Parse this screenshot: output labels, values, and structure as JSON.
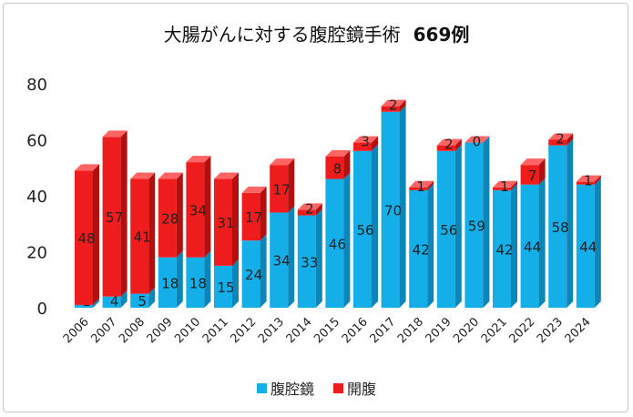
{
  "title": "大腸がんに対する腹腔鏡手術",
  "title_count": "669例",
  "colors": {
    "laparoscopic_front": "#14aee8",
    "laparoscopic_side": "#0c86b8",
    "laparoscopic_top": "#6fd0f5",
    "open_front": "#ee1c1c",
    "open_side": "#b40f0f",
    "open_top": "#ff6464"
  },
  "chart_data": {
    "type": "bar",
    "stacked": true,
    "title": "大腸がんに対する腹腔鏡手術 669例",
    "xlabel": "",
    "ylabel": "",
    "ylim": [
      0,
      80
    ],
    "yticks": [
      "0",
      "20",
      "40",
      "60",
      "80"
    ],
    "categories": [
      "2006",
      "2007",
      "2008",
      "2009",
      "2010",
      "2011",
      "2012",
      "2013",
      "2014",
      "2015",
      "2016",
      "2017",
      "2018",
      "2019",
      "2020",
      "2021",
      "2022",
      "2023",
      "2024"
    ],
    "series": [
      {
        "name": "腹腔鏡",
        "values": [
          1,
          4,
          5,
          18,
          18,
          15,
          24,
          34,
          33,
          46,
          56,
          70,
          42,
          56,
          59,
          42,
          44,
          58,
          44
        ]
      },
      {
        "name": "開腹",
        "values": [
          48,
          57,
          41,
          28,
          34,
          31,
          17,
          17,
          2,
          8,
          3,
          2,
          1,
          2,
          0,
          1,
          7,
          2,
          1
        ]
      }
    ],
    "legend_position": "bottom"
  }
}
